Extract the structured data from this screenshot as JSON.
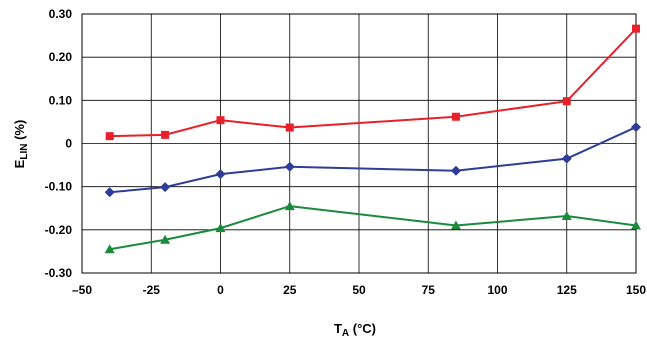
{
  "chart_data": {
    "type": "line",
    "xlabel_main": "T",
    "xlabel_sub": "A",
    "xlabel_unit": " (°C)",
    "ylabel_main": "E",
    "ylabel_sub": "LIN",
    "ylabel_unit": " (%)",
    "xlim": [
      -50,
      150
    ],
    "ylim": [
      -0.3,
      0.3
    ],
    "grid": true,
    "x_ticks": [
      -50,
      -25,
      0,
      25,
      50,
      75,
      100,
      125,
      150
    ],
    "x_tick_labels": [
      "–50",
      "-25",
      "0",
      "25",
      "50",
      "75",
      "100",
      "125",
      "150"
    ],
    "y_ticks": [
      0.3,
      0.2,
      0.1,
      0,
      -0.1,
      -0.2,
      -0.3
    ],
    "y_tick_labels": [
      "0.30",
      "0.20",
      "0.10",
      "0",
      "-0.10",
      "-0.20",
      "-0.30"
    ],
    "series": [
      {
        "color": "#e8202a",
        "marker": "square",
        "x": [
          -40,
          -20,
          0,
          25,
          85,
          125,
          150
        ],
        "y": [
          0.017,
          0.02,
          0.054,
          0.037,
          0.062,
          0.098,
          0.266
        ]
      },
      {
        "color": "#2e3d98",
        "marker": "diamond",
        "x": [
          -40,
          -20,
          0,
          25,
          85,
          125,
          150
        ],
        "y": [
          -0.113,
          -0.101,
          -0.071,
          -0.054,
          -0.063,
          -0.035,
          0.038
        ]
      },
      {
        "color": "#1a8a3c",
        "marker": "triangle",
        "x": [
          -40,
          -20,
          0,
          25,
          85,
          125,
          150
        ],
        "y": [
          -0.245,
          -0.223,
          -0.196,
          -0.145,
          -0.19,
          -0.168,
          -0.19
        ]
      }
    ]
  }
}
